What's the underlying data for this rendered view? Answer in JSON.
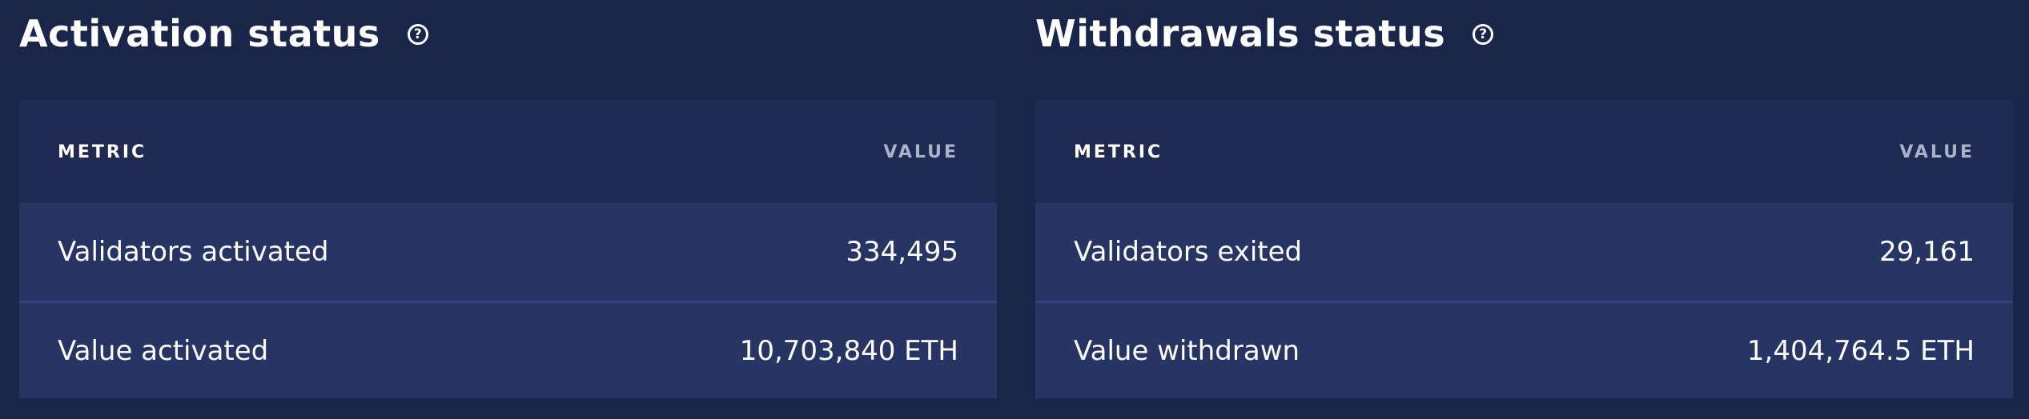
{
  "activation": {
    "title": "Activation status",
    "help_icon": "help-circle-icon",
    "columns": {
      "metric": "METRIC",
      "value": "VALUE"
    },
    "rows": [
      {
        "label": "Validators activated",
        "value": "334,495"
      },
      {
        "label": "Value activated",
        "value": "10,703,840 ETH"
      }
    ]
  },
  "withdrawals": {
    "title": "Withdrawals status",
    "help_icon": "help-circle-icon",
    "columns": {
      "metric": "METRIC",
      "value": "VALUE"
    },
    "rows": [
      {
        "label": "Validators exited",
        "value": "29,161"
      },
      {
        "label": "Value withdrawn",
        "value": "1,404,764.5 ETH"
      }
    ]
  },
  "colors": {
    "page_background": "#19264a",
    "table_header": "#1f2b52",
    "row_background": "#263563",
    "row_divider": "#34447a",
    "muted_text": "#a9b2c9"
  }
}
